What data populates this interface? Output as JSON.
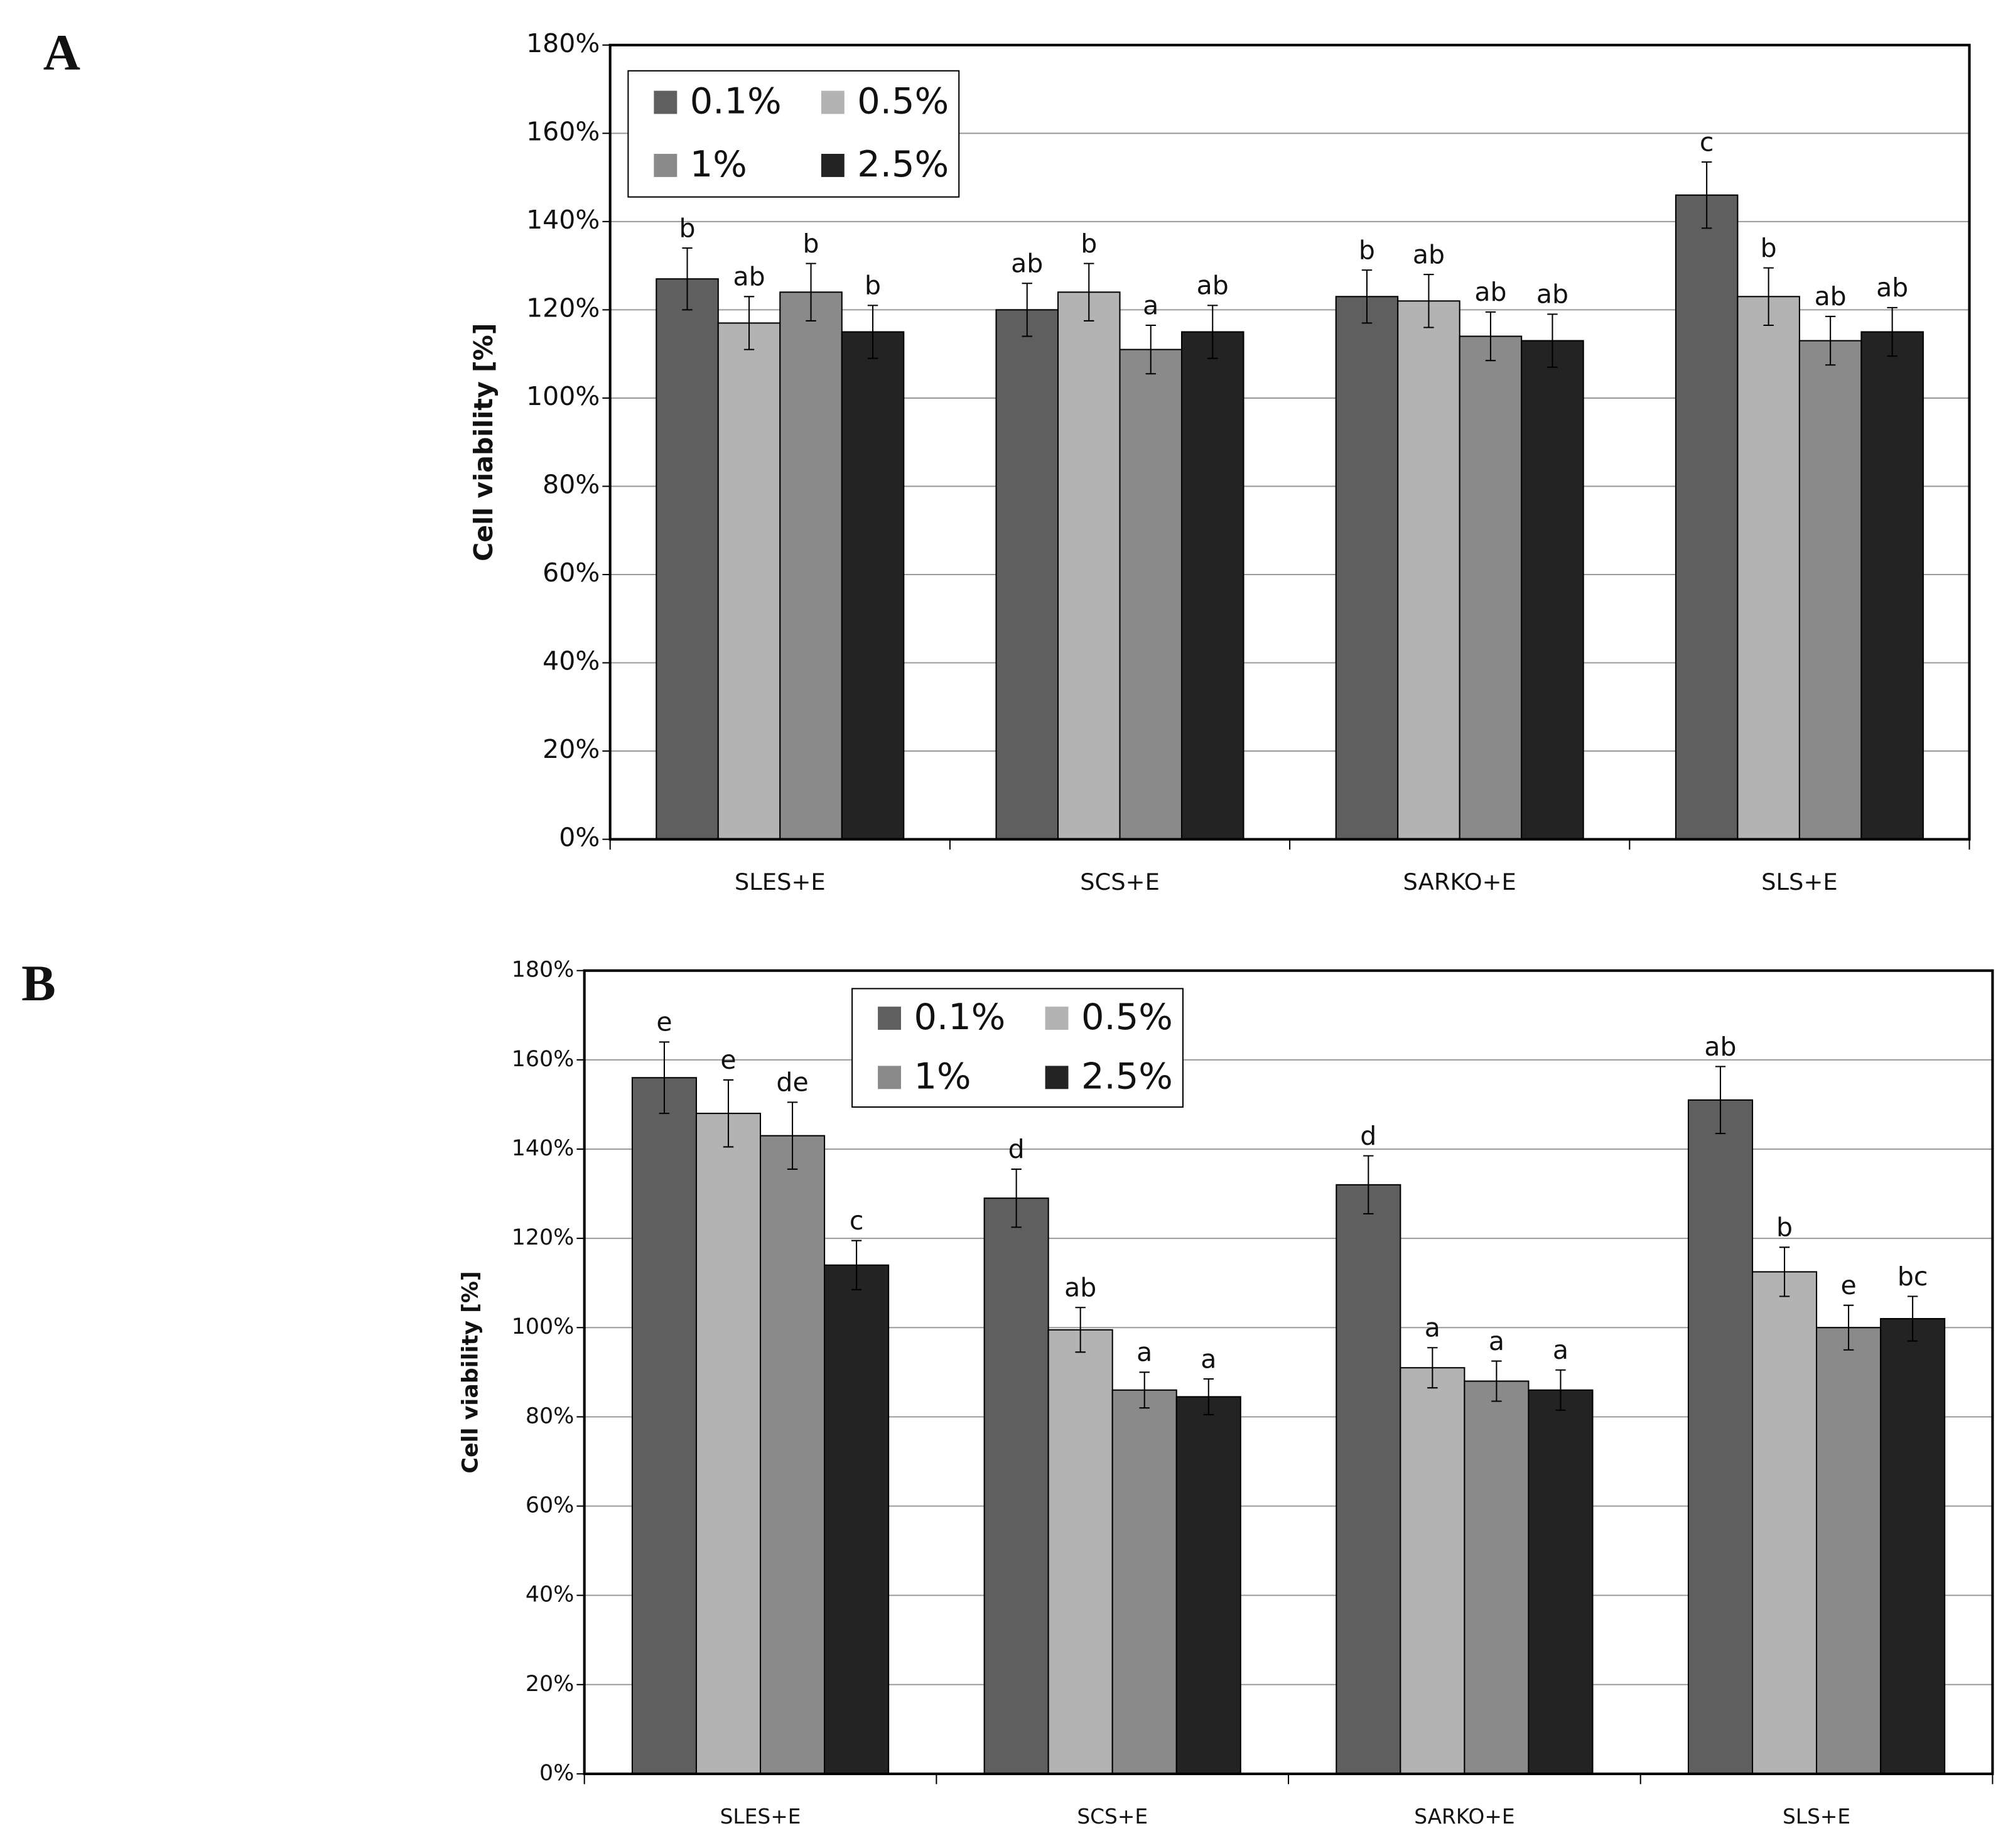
{
  "chart_data": [
    {
      "type": "bar",
      "label": "A",
      "y_label": "Cell viability [%]",
      "categories": [
        "SLES+E",
        "SCS+E",
        "SARKO+E",
        "SLS+E"
      ],
      "series": [
        {
          "name": "0.1%",
          "color": "#5f5f5f",
          "values": [
            127,
            120,
            123,
            146
          ],
          "errors": [
            7,
            6,
            6,
            7.5
          ],
          "annotations": [
            "b",
            "ab",
            "b",
            "c"
          ]
        },
        {
          "name": "0.5%",
          "color": "#b3b3b3",
          "values": [
            117,
            124,
            122,
            123
          ],
          "errors": [
            6,
            6.5,
            6,
            6.5
          ],
          "annotations": [
            "ab",
            "b",
            "ab",
            "b"
          ]
        },
        {
          "name": "1%",
          "color": "#8a8a8a",
          "values": [
            124,
            111,
            114,
            113
          ],
          "errors": [
            6.5,
            5.5,
            5.5,
            5.5
          ],
          "annotations": [
            "b",
            "a",
            "ab",
            "ab"
          ]
        },
        {
          "name": "2.5%",
          "color": "#232323",
          "values": [
            115,
            115,
            113,
            115
          ],
          "errors": [
            6,
            6,
            6,
            5.5
          ],
          "annotations": [
            "b",
            "ab",
            "ab",
            "ab"
          ]
        }
      ],
      "ylim": [
        0,
        180
      ],
      "yticks": [
        {
          "value": 0,
          "label": "0%"
        },
        {
          "value": 20,
          "label": "20%"
        },
        {
          "value": 40,
          "label": "40%"
        },
        {
          "value": 60,
          "label": "60%"
        },
        {
          "value": 80,
          "label": "80%"
        },
        {
          "value": 100,
          "label": "100%"
        },
        {
          "value": 120,
          "label": "120%"
        },
        {
          "value": 140,
          "label": "140%"
        },
        {
          "value": 160,
          "label": "160%"
        },
        {
          "value": 180,
          "label": "180%"
        }
      ],
      "grid": true,
      "legend": "upper left"
    },
    {
      "type": "bar",
      "label": "B",
      "y_label": "Cell viability [%]",
      "categories": [
        "SLES+E",
        "SCS+E",
        "SARKO+E",
        "SLS+E"
      ],
      "series": [
        {
          "name": "0.1%",
          "color": "#5f5f5f",
          "values": [
            156,
            129,
            132,
            151
          ],
          "errors": [
            8,
            6.5,
            6.5,
            7.5
          ],
          "annotations": [
            "e",
            "d",
            "d",
            "ab"
          ]
        },
        {
          "name": "0.5%",
          "color": "#b3b3b3",
          "values": [
            148,
            99.5,
            91,
            112.5
          ],
          "errors": [
            7.5,
            5,
            4.5,
            5.5
          ],
          "annotations": [
            "e",
            "ab",
            "a",
            "b"
          ]
        },
        {
          "name": "1%",
          "color": "#8a8a8a",
          "values": [
            143,
            86,
            88,
            100
          ],
          "errors": [
            7.5,
            4,
            4.5,
            5
          ],
          "annotations": [
            "de",
            "a",
            "a",
            "e"
          ]
        },
        {
          "name": "2.5%",
          "color": "#232323",
          "values": [
            114,
            84.5,
            86,
            102
          ],
          "errors": [
            5.5,
            4,
            4.5,
            5
          ],
          "annotations": [
            "c",
            "a",
            "a",
            "bc"
          ]
        }
      ],
      "ylim": [
        0,
        180
      ],
      "yticks": [
        {
          "value": 0,
          "label": "0%"
        },
        {
          "value": 20,
          "label": "20%"
        },
        {
          "value": 40,
          "label": "40%"
        },
        {
          "value": 60,
          "label": "60%"
        },
        {
          "value": 80,
          "label": "80%"
        },
        {
          "value": 100,
          "label": "100%"
        },
        {
          "value": 120,
          "label": "120%"
        },
        {
          "value": 140,
          "label": "140%"
        },
        {
          "value": 160,
          "label": "160%"
        },
        {
          "value": 180,
          "label": "180%"
        }
      ],
      "grid": true,
      "legend": "upper left"
    }
  ]
}
